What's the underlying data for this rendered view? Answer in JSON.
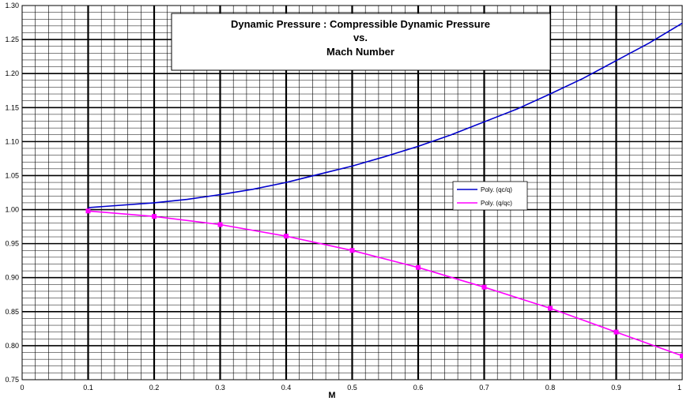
{
  "chart_data": {
    "type": "line",
    "title": [
      "Dynamic Pressure : Compressible Dynamic Pressure",
      "vs.",
      "Mach Number"
    ],
    "xlabel": "M",
    "ylabel": "",
    "xlim": [
      0,
      1
    ],
    "ylim": [
      0.75,
      1.3
    ],
    "x_ticks": [
      "0",
      "0.1",
      "0.2",
      "0.3",
      "0.4",
      "0.5",
      "0.6",
      "0.7",
      "0.8",
      "0.9",
      "1"
    ],
    "y_ticks": [
      "0.75",
      "0.80",
      "0.85",
      "0.90",
      "0.95",
      "1.00",
      "1.05",
      "1.10",
      "1.15",
      "1.20",
      "1.25",
      "1.30"
    ],
    "grid": true,
    "legend_position": "right-middle",
    "series": [
      {
        "name": "Poly. (qc/q)",
        "color": "#0000cc",
        "markers": false,
        "x": [
          0.1,
          0.2,
          0.25,
          0.3,
          0.35,
          0.4,
          0.45,
          0.5,
          0.55,
          0.6,
          0.65,
          0.7,
          0.75,
          0.8,
          0.85,
          0.9,
          0.95,
          1.0
        ],
        "y": [
          1.003,
          1.01,
          1.015,
          1.022,
          1.03,
          1.04,
          1.052,
          1.064,
          1.078,
          1.093,
          1.11,
          1.129,
          1.148,
          1.17,
          1.193,
          1.219,
          1.245,
          1.274
        ]
      },
      {
        "name": "Poly. (q/qc)",
        "color": "#ff00ff",
        "markers": true,
        "x": [
          0.1,
          0.2,
          0.3,
          0.4,
          0.5,
          0.6,
          0.7,
          0.8,
          0.9,
          1.0
        ],
        "y": [
          0.998,
          0.99,
          0.978,
          0.961,
          0.94,
          0.915,
          0.886,
          0.855,
          0.82,
          0.785
        ]
      }
    ]
  }
}
